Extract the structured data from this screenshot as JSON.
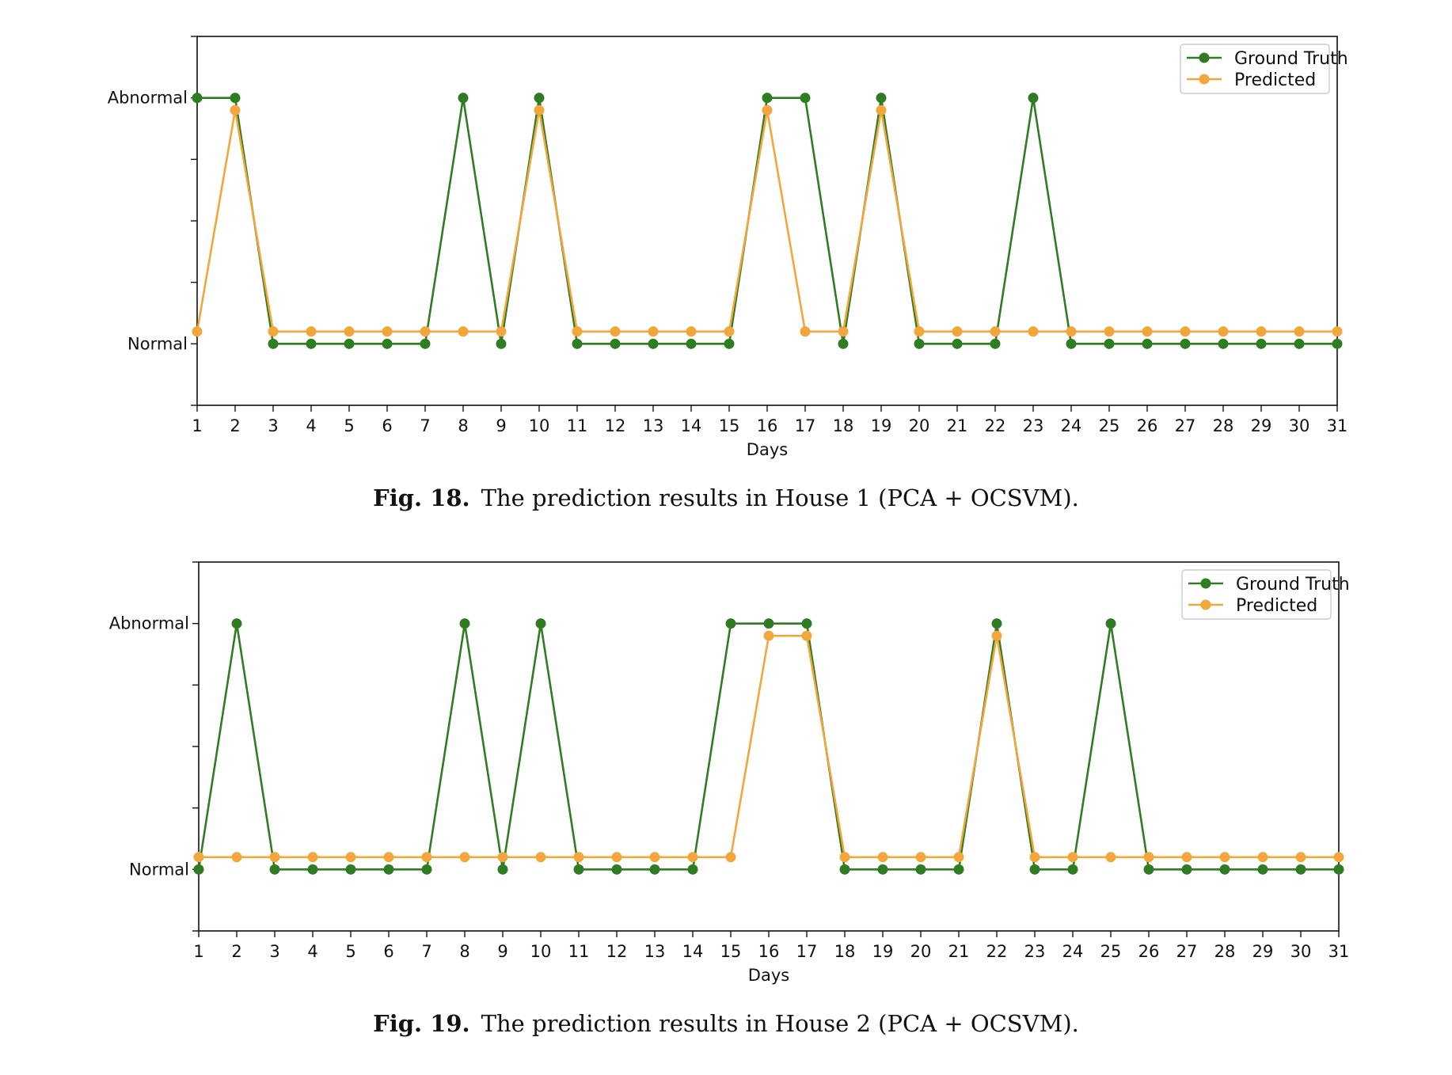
{
  "colors": {
    "ground_truth": "#2f7d22",
    "predicted": "#f2a63c",
    "axis": "#111111",
    "legend_border": "#cccccc"
  },
  "chart_data": [
    {
      "type": "line",
      "xlabel": "Days",
      "ylabel": "",
      "x": [
        1,
        2,
        3,
        4,
        5,
        6,
        7,
        8,
        9,
        10,
        11,
        12,
        13,
        14,
        15,
        16,
        17,
        18,
        19,
        20,
        21,
        22,
        23,
        24,
        25,
        26,
        27,
        28,
        29,
        30,
        31
      ],
      "xlim": [
        1,
        31
      ],
      "y_tick_labels": [
        "Normal",
        "Abnormal"
      ],
      "legend": "top-right",
      "grid": false,
      "series": [
        {
          "name": "Ground Truth",
          "values": [
            "Abnormal",
            "Abnormal",
            "Normal",
            "Normal",
            "Normal",
            "Normal",
            "Normal",
            "Abnormal",
            "Normal",
            "Abnormal",
            "Normal",
            "Normal",
            "Normal",
            "Normal",
            "Normal",
            "Abnormal",
            "Abnormal",
            "Normal",
            "Abnormal",
            "Normal",
            "Normal",
            "Normal",
            "Abnormal",
            "Normal",
            "Normal",
            "Normal",
            "Normal",
            "Normal",
            "Normal",
            "Normal",
            "Normal"
          ]
        },
        {
          "name": "Predicted",
          "values": [
            "Normal",
            "Abnormal",
            "Normal",
            "Normal",
            "Normal",
            "Normal",
            "Normal",
            "Normal",
            "Normal",
            "Abnormal",
            "Normal",
            "Normal",
            "Normal",
            "Normal",
            "Normal",
            "Abnormal",
            "Normal",
            "Normal",
            "Abnormal",
            "Normal",
            "Normal",
            "Normal",
            "Normal",
            "Normal",
            "Normal",
            "Normal",
            "Normal",
            "Normal",
            "Normal",
            "Normal",
            "Normal"
          ]
        }
      ]
    },
    {
      "type": "line",
      "xlabel": "Days",
      "ylabel": "",
      "x": [
        1,
        2,
        3,
        4,
        5,
        6,
        7,
        8,
        9,
        10,
        11,
        12,
        13,
        14,
        15,
        16,
        17,
        18,
        19,
        20,
        21,
        22,
        23,
        24,
        25,
        26,
        27,
        28,
        29,
        30,
        31
      ],
      "xlim": [
        1,
        31
      ],
      "y_tick_labels": [
        "Normal",
        "Abnormal"
      ],
      "legend": "top-right",
      "grid": false,
      "series": [
        {
          "name": "Ground Truth",
          "values": [
            "Normal",
            "Abnormal",
            "Normal",
            "Normal",
            "Normal",
            "Normal",
            "Normal",
            "Abnormal",
            "Normal",
            "Abnormal",
            "Normal",
            "Normal",
            "Normal",
            "Normal",
            "Abnormal",
            "Abnormal",
            "Abnormal",
            "Normal",
            "Normal",
            "Normal",
            "Normal",
            "Abnormal",
            "Normal",
            "Normal",
            "Abnormal",
            "Normal",
            "Normal",
            "Normal",
            "Normal",
            "Normal",
            "Normal"
          ]
        },
        {
          "name": "Predicted",
          "values": [
            "Normal",
            "Normal",
            "Normal",
            "Normal",
            "Normal",
            "Normal",
            "Normal",
            "Normal",
            "Normal",
            "Normal",
            "Normal",
            "Normal",
            "Normal",
            "Normal",
            "Normal",
            "Abnormal",
            "Abnormal",
            "Normal",
            "Normal",
            "Normal",
            "Normal",
            "Abnormal",
            "Normal",
            "Normal",
            "Normal",
            "Normal",
            "Normal",
            "Normal",
            "Normal",
            "Normal",
            "Normal"
          ]
        }
      ]
    }
  ],
  "captions": [
    {
      "label": "Fig. 18.",
      "text": "The prediction results in House 1 (PCA + OCSVM)."
    },
    {
      "label": "Fig. 19.",
      "text": "The prediction results in House 2 (PCA + OCSVM)."
    }
  ]
}
